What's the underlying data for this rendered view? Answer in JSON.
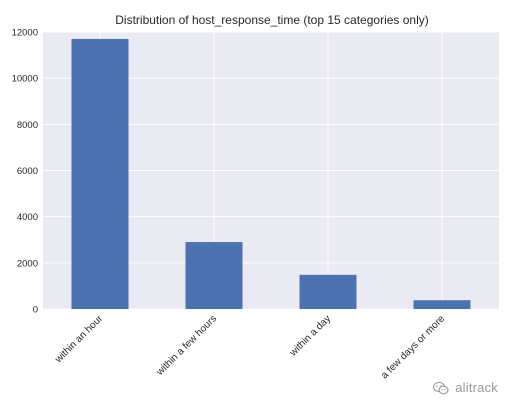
{
  "chart_data": {
    "type": "bar",
    "title": "Distribution of host_response_time (top 15 categories only)",
    "xlabel": "",
    "ylabel": "",
    "categories": [
      "within an hour",
      "within a few hours",
      "within a day",
      "a few days or more"
    ],
    "values": [
      11700,
      2900,
      1480,
      380
    ],
    "ylim": [
      0,
      12000
    ],
    "yticks": [
      0,
      2000,
      4000,
      6000,
      8000,
      10000,
      12000
    ],
    "grid": true,
    "bar_color": "#4c72b0",
    "background_color": "#eaeaf2",
    "grid_color": "#ffffff"
  },
  "watermark": {
    "text": "alitrack",
    "icon": "wechat-icon"
  }
}
